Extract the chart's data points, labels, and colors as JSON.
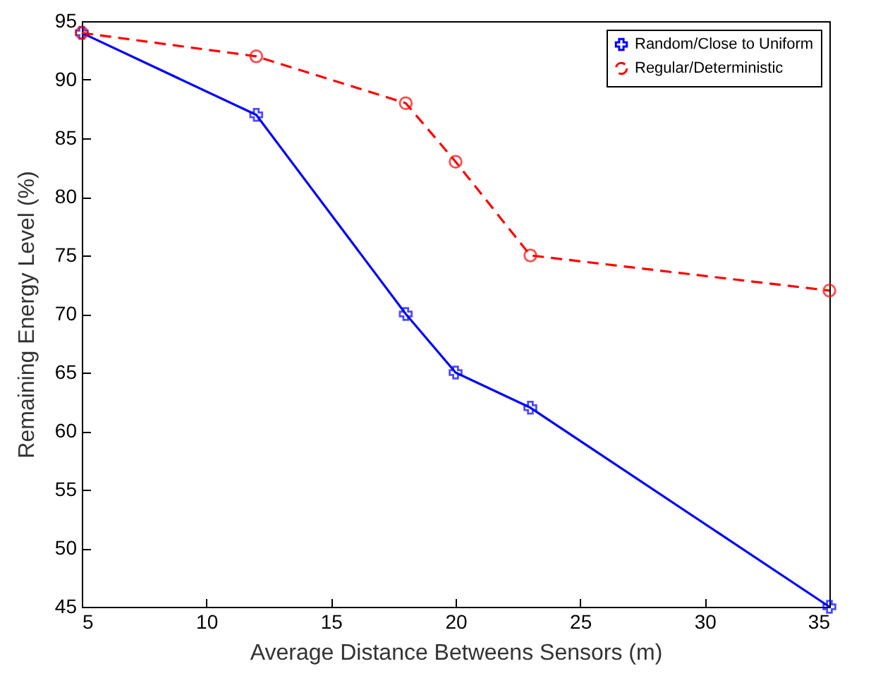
{
  "chart_data": {
    "type": "line",
    "xlabel": "Average Distance Betweens Sensors (m)",
    "ylabel": "Remaining Energy Level (%)",
    "x": [
      5,
      12,
      18,
      20,
      23,
      35
    ],
    "series": [
      {
        "name": "Random/Close to Uniform",
        "color": "#0000ff",
        "values": [
          94,
          87,
          70,
          65,
          62,
          45
        ],
        "marker": "cross",
        "line_style": "solid"
      },
      {
        "name": "Regular/Deterministic",
        "color": "#ff0000",
        "values": [
          94,
          92,
          88,
          83,
          75,
          72
        ],
        "marker": "circle",
        "line_style": "dashed"
      }
    ],
    "xlim": [
      5,
      35
    ],
    "xticks": [
      5,
      10,
      15,
      20,
      25,
      30,
      35
    ],
    "ylim": [
      45,
      95
    ],
    "yticks": [
      45,
      50,
      55,
      60,
      65,
      70,
      75,
      80,
      85,
      90,
      95
    ],
    "grid": false,
    "legend": "top right"
  }
}
